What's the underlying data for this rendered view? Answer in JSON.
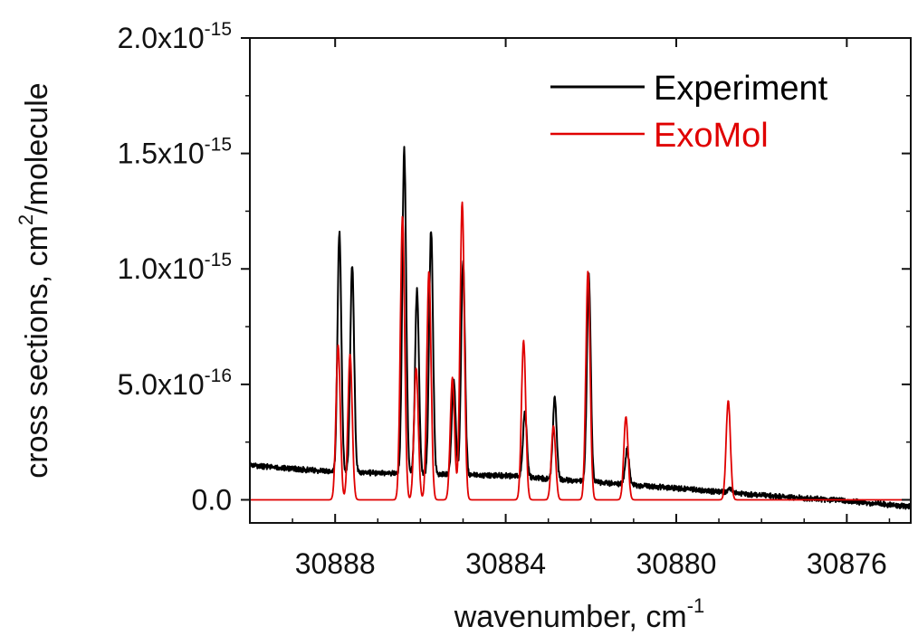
{
  "chart_data": {
    "type": "line",
    "xlabel": {
      "base": "wavenumber, cm",
      "sup": "-1"
    },
    "ylabel": {
      "base": "cross sections, cm",
      "sup": "2",
      "tail": "/molecule"
    },
    "xlim": [
      30890.0,
      30874.5
    ],
    "ylim": [
      -1e-16,
      2e-15
    ],
    "x_ticks": [
      {
        "value": 30888,
        "label": "30888"
      },
      {
        "value": 30884,
        "label": "30884"
      },
      {
        "value": 30880,
        "label": "30880"
      },
      {
        "value": 30876,
        "label": "30876"
      }
    ],
    "y_ticks": [
      {
        "value": 0.0,
        "label": "0.0"
      },
      {
        "value": 5e-16,
        "label": "5.0x10",
        "sup": "-16"
      },
      {
        "value": 1e-15,
        "label": "1.0x10",
        "sup": "-15"
      },
      {
        "value": 1.5e-15,
        "label": "1.5x10",
        "sup": "-15"
      },
      {
        "value": 2e-15,
        "label": "2.0x10",
        "sup": "-15"
      }
    ],
    "legend_position": "top-right",
    "series": [
      {
        "name": "Experiment",
        "color": "#000000",
        "baseline": [
          [
            30890.0,
            1.5e-16
          ],
          [
            30888.0,
            1.2e-16
          ],
          [
            30884.0,
            1.05e-16
          ],
          [
            30880.0,
            5e-17
          ],
          [
            30878.0,
            2e-17
          ],
          [
            30876.0,
            -5e-18
          ],
          [
            30874.5,
            -3e-17
          ]
        ],
        "peaks": [
          [
            30887.9,
            1.16e-15
          ],
          [
            30887.6,
            1.02e-15
          ],
          [
            30886.38,
            1.52e-15
          ],
          [
            30886.08,
            9.1e-16
          ],
          [
            30885.75,
            1.17e-15
          ],
          [
            30885.22,
            5.2e-16
          ],
          [
            30885.0,
            1.03e-15
          ],
          [
            30883.55,
            3.8e-16
          ],
          [
            30882.85,
            4.4e-16
          ],
          [
            30882.05,
            9.7e-16
          ],
          [
            30881.15,
            2.2e-16
          ],
          [
            30878.75,
            5e-17
          ]
        ]
      },
      {
        "name": "ExoMol",
        "color": "#e00000",
        "baseline": [
          [
            30890.0,
            0.0
          ],
          [
            30874.5,
            0.0
          ]
        ],
        "peaks": [
          [
            30887.93,
            6.7e-16
          ],
          [
            30887.65,
            6.3e-16
          ],
          [
            30886.42,
            1.23e-15
          ],
          [
            30886.1,
            5.7e-16
          ],
          [
            30885.8,
            9.9e-16
          ],
          [
            30885.25,
            5.3e-16
          ],
          [
            30885.02,
            1.29e-15
          ],
          [
            30883.58,
            6.9e-16
          ],
          [
            30882.88,
            3.2e-16
          ],
          [
            30882.07,
            9.9e-16
          ],
          [
            30881.18,
            3.6e-16
          ],
          [
            30878.78,
            4.3e-16
          ]
        ]
      }
    ]
  }
}
